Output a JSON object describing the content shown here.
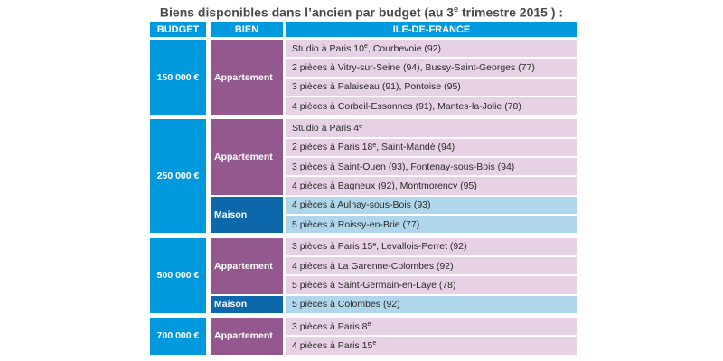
{
  "title": {
    "before": "Biens disponibles dans l’ancien par budget (au 3",
    "sup": "e",
    "after": " trimestre 2015 ) :"
  },
  "headers": {
    "budget": "BUDGET",
    "bien": "BIEN",
    "region": "ILE-DE-FRANCE"
  },
  "groups": [
    {
      "budget": "150 000 €",
      "types": [
        {
          "kind": "Appartement",
          "rows": [
            {
              "text": "Studio à Paris 10",
              "sup": "e",
              "after": ", Courbevoie (92)"
            },
            {
              "text": "2 pièces à Vitry-sur-Seine (94), Bussy-Saint-Georges (77)"
            },
            {
              "text": "3 pièces à Palaiseau (91), Pontoise (95)"
            },
            {
              "text": "4 pièces à Corbeil-Essonnes (91), Mantes-la-Jolie (78)"
            }
          ]
        }
      ]
    },
    {
      "budget": "250 000 €",
      "types": [
        {
          "kind": "Appartement",
          "rows": [
            {
              "text": "Studio à Paris 4",
              "sup": "e"
            },
            {
              "text": "2 pièces à Paris 18",
              "sup": "e",
              "after": ", Saint-Mandé (94)"
            },
            {
              "text": "3 pièces à Saint-Ouen (93), Fontenay-sous-Bois (94)"
            },
            {
              "text": "4 pièces à Bagneux (92), Montmorency (95)"
            }
          ]
        },
        {
          "kind": "Maison",
          "rows": [
            {
              "text": "4 pièces à Aulnay-sous-Bois (93)"
            },
            {
              "text": "5 pièces à Roissy-en-Brie (77)"
            }
          ]
        }
      ]
    },
    {
      "budget": "500 000 €",
      "types": [
        {
          "kind": "Appartement",
          "rows": [
            {
              "text": "3 pièces à Paris 15",
              "sup": "e",
              "after": ", Levallois-Perret (92)"
            },
            {
              "text": "4 pièces à La Garenne-Colombes (92)"
            },
            {
              "text": "5 pièces à Saint-Germain-en-Laye (78)"
            }
          ]
        },
        {
          "kind": "Maison",
          "rows": [
            {
              "text": "5 pièces à Colombes (92)"
            }
          ]
        }
      ]
    },
    {
      "budget": "700 000 €",
      "types": [
        {
          "kind": "Appartement",
          "rows": [
            {
              "text": "3 pièces à Paris 8",
              "sup": "e"
            },
            {
              "text": "4 pièces à Paris 15",
              "sup": "e"
            }
          ]
        }
      ]
    }
  ]
}
